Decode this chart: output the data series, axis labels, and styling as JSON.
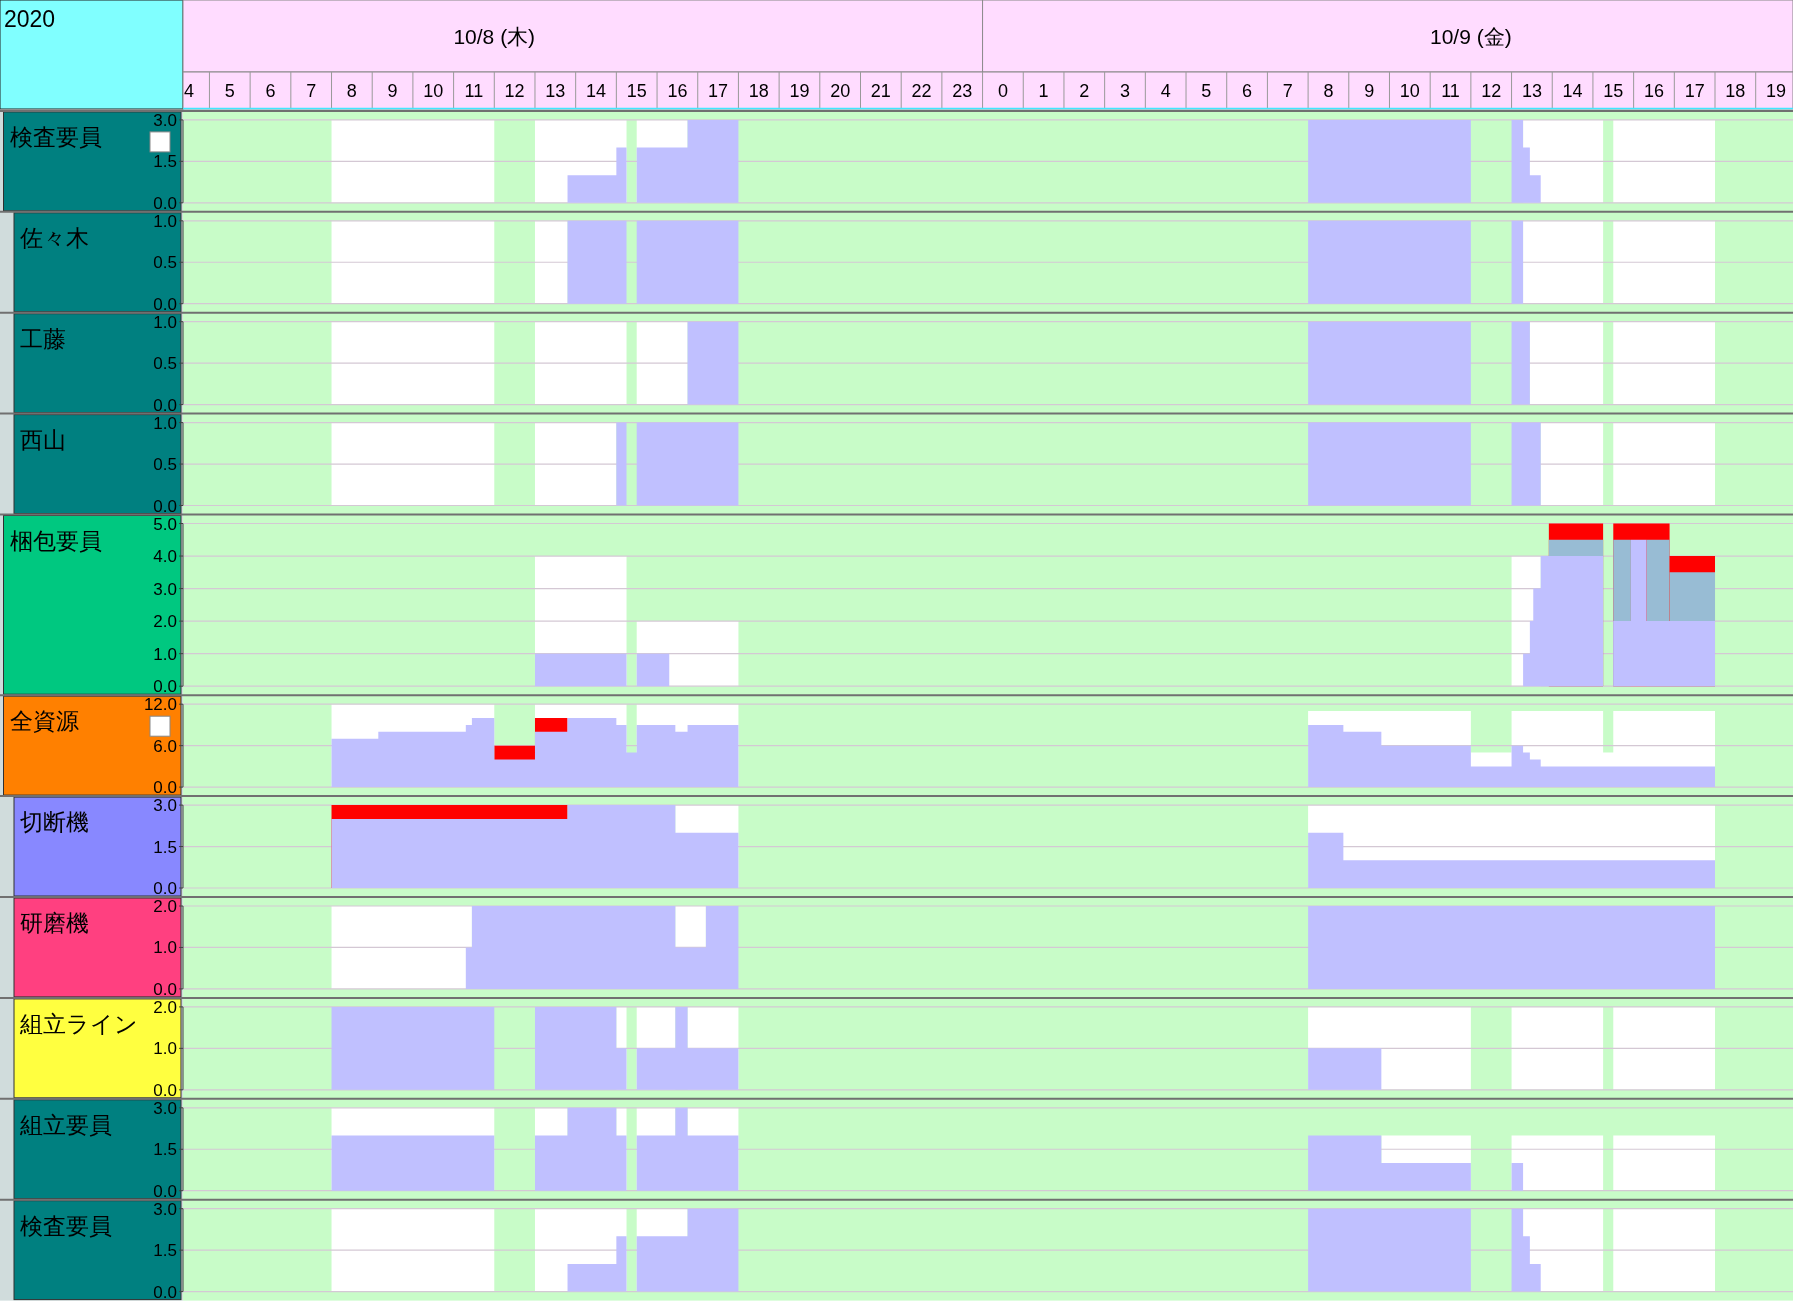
{
  "chart_data": [
    {
      "type": "area",
      "ylabel": "検査要員",
      "annotations": [
        "2020"
      ],
      "xlim": [
        "2020-10-08T04:21",
        "2020-10-09T19:55"
      ],
      "xticks": [
        {
          "value": "2020-10-08T04:30",
          "label": "4"
        },
        {
          "value": "2020-10-08T05:30",
          "label": "5"
        },
        {
          "value": "2020-10-08T06:30",
          "label": "6"
        },
        {
          "value": "2020-10-08T07:30",
          "label": "7"
        },
        {
          "value": "2020-10-08T08:30",
          "label": "8"
        },
        {
          "value": "2020-10-08T09:30",
          "label": "9"
        },
        {
          "value": "2020-10-08T10:30",
          "label": "10"
        },
        {
          "value": "2020-10-08T11:30",
          "label": "11"
        },
        {
          "value": "2020-10-08T12:30",
          "label": "12"
        },
        {
          "value": "2020-10-08T13:30",
          "label": "13"
        },
        {
          "value": "2020-10-08T14:30",
          "label": "14"
        },
        {
          "value": "2020-10-08T15:30",
          "label": "15"
        },
        {
          "value": "2020-10-08T16:30",
          "label": "16"
        },
        {
          "value": "2020-10-08T17:30",
          "label": "17"
        },
        {
          "value": "2020-10-08T18:30",
          "label": "18"
        },
        {
          "value": "2020-10-08T19:30",
          "label": "19"
        },
        {
          "value": "2020-10-08T20:30",
          "label": "20"
        },
        {
          "value": "2020-10-08T21:30",
          "label": "21"
        },
        {
          "value": "2020-10-08T22:30",
          "label": "22"
        },
        {
          "value": "2020-10-08T23:30",
          "label": "23"
        },
        {
          "value": "2020-10-09T00:30",
          "label": "0"
        },
        {
          "value": "2020-10-09T01:30",
          "label": "1"
        },
        {
          "value": "2020-10-09T02:30",
          "label": "2"
        },
        {
          "value": "2020-10-09T03:30",
          "label": "3"
        },
        {
          "value": "2020-10-09T04:30",
          "label": "4"
        },
        {
          "value": "2020-10-09T05:30",
          "label": "5"
        },
        {
          "value": "2020-10-09T06:30",
          "label": "6"
        },
        {
          "value": "2020-10-09T07:30",
          "label": "7"
        },
        {
          "value": "2020-10-09T08:30",
          "label": "8"
        },
        {
          "value": "2020-10-09T09:30",
          "label": "9"
        },
        {
          "value": "2020-10-09T10:30",
          "label": "10"
        },
        {
          "value": "2020-10-09T11:30",
          "label": "11"
        },
        {
          "value": "2020-10-09T12:30",
          "label": "12"
        },
        {
          "value": "2020-10-09T13:30",
          "label": "13"
        },
        {
          "value": "2020-10-09T14:30",
          "label": "14"
        },
        {
          "value": "2020-10-09T15:30",
          "label": "15"
        },
        {
          "value": "2020-10-09T16:30",
          "label": "16"
        },
        {
          "value": "2020-10-09T17:30",
          "label": "17"
        },
        {
          "value": "2020-10-09T18:30",
          "label": "18"
        },
        {
          "value": "2020-10-09T19:30",
          "label": "19"
        }
      ],
      "x2lim": [
        "2020-10-08T04:21",
        "2020-10-09T19:55"
      ],
      "x2ticks": [
        {
          "value": "2020-10-08T12:00",
          "label": "10/8 (木)"
        },
        {
          "value": "2020-10-09T12:00",
          "label": "10/9 (金)"
        }
      ],
      "ylim": [
        0,
        3
      ],
      "yticks": [
        {
          "value": 0,
          "label": "0.0"
        },
        {
          "value": 1.5,
          "label": "1.5"
        },
        {
          "value": 3,
          "label": "3.0"
        }
      ],
      "grid": "y",
      "series": [
        {
          "color": "#ffffff",
          "x": [
            "2020-10-08T08:00",
            "2020-10-08T12:00",
            null,
            "2020-10-08T13:00",
            "2020-10-08T15:15",
            null,
            "2020-10-08T15:30",
            "2020-10-08T16:45",
            null,
            "2020-10-09T13:17",
            "2020-10-09T15:15",
            null,
            "2020-10-09T15:30",
            "2020-10-09T18:00"
          ],
          "values": [
            3,
            3,
            null,
            3,
            3,
            null,
            3,
            3,
            null,
            3,
            3,
            null,
            3,
            3
          ]
        },
        {
          "color": "#c0c0ff",
          "x": [
            "2020-10-08T13:48",
            "2020-10-08T15:00",
            "2020-10-08T15:00",
            "2020-10-08T15:15",
            null,
            "2020-10-08T15:30",
            "2020-10-08T16:45",
            "2020-10-08T16:45",
            "2020-10-08T18:00",
            null,
            "2020-10-09T08:00",
            "2020-10-09T12:00",
            null,
            "2020-10-09T13:00",
            "2020-10-09T13:17",
            "2020-10-09T13:17",
            "2020-10-09T13:27",
            "2020-10-09T13:27",
            "2020-10-09T13:43"
          ],
          "values": [
            1,
            1,
            2,
            2,
            null,
            2,
            2,
            3,
            3,
            null,
            3,
            3,
            null,
            3,
            3,
            2,
            2,
            1,
            1
          ]
        }
      ]
    },
    {
      "type": "area",
      "ylabel": "佐々木",
      "tick_labels": "y",
      "xlim": [
        "2020-10-08T04:21",
        "2020-10-09T19:55"
      ],
      "ylim": [
        0,
        1
      ],
      "yticks": [
        {
          "value": 0,
          "label": "0.0"
        },
        {
          "value": 0.5,
          "label": "0.5"
        },
        {
          "value": 1,
          "label": "1.0"
        }
      ],
      "grid": "y",
      "series": [
        {
          "color": "#ffffff",
          "x": [
            "2020-10-08T08:00",
            "2020-10-08T12:00",
            null,
            "2020-10-08T13:00",
            "2020-10-08T13:48",
            null,
            "2020-10-09T13:17",
            "2020-10-09T15:15",
            null,
            "2020-10-09T15:30",
            "2020-10-09T18:00"
          ],
          "values": [
            1,
            1,
            null,
            1,
            1,
            null,
            1,
            1,
            null,
            1,
            1
          ]
        },
        {
          "color": "#c0c0ff",
          "x": [
            "2020-10-08T13:48",
            "2020-10-08T15:15",
            null,
            "2020-10-08T15:30",
            "2020-10-08T18:00",
            null,
            "2020-10-09T08:00",
            "2020-10-09T12:00",
            null,
            "2020-10-09T13:00",
            "2020-10-09T13:17"
          ],
          "values": [
            1,
            1,
            null,
            1,
            1,
            null,
            1,
            1,
            null,
            1,
            1
          ]
        }
      ]
    },
    {
      "type": "area",
      "ylabel": "工藤",
      "tick_labels": "y",
      "xlim": [
        "2020-10-08T04:21",
        "2020-10-09T19:55"
      ],
      "ylim": [
        0,
        1
      ],
      "yticks": [
        {
          "value": 0,
          "label": "0.0"
        },
        {
          "value": 0.5,
          "label": "0.5"
        },
        {
          "value": 1,
          "label": "1.0"
        }
      ],
      "grid": "y",
      "series": [
        {
          "color": "#ffffff",
          "x": [
            "2020-10-08T08:00",
            "2020-10-08T12:00",
            null,
            "2020-10-08T13:00",
            "2020-10-08T15:15",
            null,
            "2020-10-08T15:30",
            "2020-10-08T16:45",
            null,
            "2020-10-09T13:27",
            "2020-10-09T15:15",
            null,
            "2020-10-09T15:30",
            "2020-10-09T18:00"
          ],
          "values": [
            1,
            1,
            null,
            1,
            1,
            null,
            1,
            1,
            null,
            1,
            1,
            null,
            1,
            1
          ]
        },
        {
          "color": "#c0c0ff",
          "x": [
            "2020-10-08T16:45",
            "2020-10-08T18:00",
            null,
            "2020-10-09T08:00",
            "2020-10-09T12:00",
            null,
            "2020-10-09T13:00",
            "2020-10-09T13:27"
          ],
          "values": [
            1,
            1,
            null,
            1,
            1,
            null,
            1,
            1
          ]
        }
      ]
    },
    {
      "type": "area",
      "ylabel": "西山",
      "tick_labels": "y",
      "xlim": [
        "2020-10-08T04:21",
        "2020-10-09T19:55"
      ],
      "ylim": [
        0,
        1
      ],
      "yticks": [
        {
          "value": 0,
          "label": "0.0"
        },
        {
          "value": 0.5,
          "label": "0.5"
        },
        {
          "value": 1,
          "label": "1.0"
        }
      ],
      "grid": "y",
      "series": [
        {
          "color": "#ffffff",
          "x": [
            "2020-10-08T08:00",
            "2020-10-08T12:00",
            null,
            "2020-10-08T13:00",
            "2020-10-08T15:00",
            null,
            "2020-10-09T13:43",
            "2020-10-09T15:15",
            null,
            "2020-10-09T15:30",
            "2020-10-09T18:00"
          ],
          "values": [
            1,
            1,
            null,
            1,
            1,
            null,
            1,
            1,
            null,
            1,
            1
          ]
        },
        {
          "color": "#c0c0ff",
          "x": [
            "2020-10-08T15:00",
            "2020-10-08T15:15",
            null,
            "2020-10-08T15:30",
            "2020-10-08T18:00",
            null,
            "2020-10-09T08:00",
            "2020-10-09T12:00",
            null,
            "2020-10-09T13:00",
            "2020-10-09T13:43"
          ],
          "values": [
            1,
            1,
            null,
            1,
            1,
            null,
            1,
            1,
            null,
            1,
            1
          ]
        }
      ]
    },
    {
      "type": "area",
      "ylabel": "梱包要員",
      "tick_labels": "y",
      "xlim": [
        "2020-10-08T04:21",
        "2020-10-09T19:55"
      ],
      "ylim": [
        0,
        5
      ],
      "yticks": [
        {
          "value": 0,
          "label": "0.0"
        },
        {
          "value": 1,
          "label": "1.0"
        },
        {
          "value": 2,
          "label": "2.0"
        },
        {
          "value": 3,
          "label": "3.0"
        },
        {
          "value": 4,
          "label": "4.0"
        },
        {
          "value": 5,
          "label": "5.0"
        }
      ],
      "grid": "y",
      "series": [
        {
          "color": "#ffffff",
          "x": [
            "2020-10-08T13:00",
            "2020-10-08T15:15",
            null,
            "2020-10-08T15:30",
            "2020-10-08T18:00",
            null,
            "2020-10-09T13:00",
            "2020-10-09T13:43"
          ],
          "values": [
            4,
            4,
            null,
            2,
            2,
            null,
            4,
            4
          ]
        },
        {
          "color": "#ff0000",
          "x": [
            "2020-10-09T13:55",
            "2020-10-09T15:15",
            null,
            "2020-10-09T15:30",
            "2020-10-09T16:53"
          ],
          "values": [
            5,
            5,
            null,
            5,
            5
          ]
        },
        {
          "color": "#98bcd4",
          "x": [
            "2020-10-09T13:55",
            "2020-10-09T15:15",
            null,
            "2020-10-09T15:30",
            "2020-10-09T15:56",
            null,
            "2020-10-09T16:19",
            "2020-10-09T16:53"
          ],
          "values": [
            4.5,
            4.5,
            null,
            4.5,
            4.5,
            null,
            4.5,
            4.5
          ]
        },
        {
          "color": "#ff0000",
          "x": [
            "2020-10-09T16:53",
            "2020-10-09T18:00"
          ],
          "values": [
            4,
            4
          ]
        },
        {
          "color": "#98bcd4",
          "x": [
            "2020-10-09T16:53",
            "2020-10-09T18:00"
          ],
          "values": [
            3.5,
            3.5
          ]
        },
        {
          "color": "#c0c0ff",
          "x": [
            "2020-10-08T13:00",
            "2020-10-08T15:15",
            null,
            "2020-10-08T15:30",
            "2020-10-08T16:18",
            null,
            "2020-10-09T13:17",
            "2020-10-09T13:27",
            "2020-10-09T13:27",
            "2020-10-09T13:32",
            "2020-10-09T13:32",
            "2020-10-09T13:43",
            "2020-10-09T13:43",
            "2020-10-09T15:15",
            null,
            "2020-10-09T15:30",
            "2020-10-09T15:56",
            "2020-10-09T15:56",
            "2020-10-09T16:19",
            "2020-10-09T16:19",
            "2020-10-09T18:00"
          ],
          "values": [
            1,
            1,
            null,
            1,
            1,
            null,
            1,
            1,
            2,
            2,
            3,
            3,
            4,
            4,
            null,
            2,
            2,
            4.5,
            4.5,
            2,
            2
          ]
        }
      ]
    },
    {
      "type": "area",
      "ylabel": "全資源",
      "tick_labels": "y",
      "xlim": [
        "2020-10-08T04:21",
        "2020-10-09T19:55"
      ],
      "ylim": [
        0,
        12
      ],
      "yticks": [
        {
          "value": 0,
          "label": "0.0"
        },
        {
          "value": 6,
          "label": "6.0"
        },
        {
          "value": 12,
          "label": "12.0"
        }
      ],
      "grid": "y",
      "series": [
        {
          "color": "#ffffff",
          "x": [
            "2020-10-08T08:00",
            "2020-10-08T12:00",
            null,
            "2020-10-08T13:00",
            "2020-10-08T15:15",
            null,
            "2020-10-08T15:30",
            "2020-10-08T18:00",
            null,
            "2020-10-09T08:00",
            "2020-10-09T12:00",
            "2020-10-09T12:00",
            "2020-10-09T13:00",
            "2020-10-09T13:00",
            "2020-10-09T15:15",
            "2020-10-09T15:15",
            "2020-10-09T15:30",
            "2020-10-09T15:30",
            "2020-10-09T18:00"
          ],
          "values": [
            12,
            12,
            null,
            12,
            12,
            null,
            12,
            12,
            null,
            11,
            11,
            5,
            5,
            11,
            11,
            5,
            5,
            11,
            11
          ]
        },
        {
          "color": "#ff0000",
          "x": [
            "2020-10-08T12:00",
            "2020-10-08T13:00",
            "2020-10-08T13:00",
            "2020-10-08T13:48"
          ],
          "values": [
            6,
            6,
            10,
            10
          ]
        },
        {
          "color": "#c0c0ff",
          "x": [
            "2020-10-08T08:00",
            "2020-10-08T09:09",
            "2020-10-08T09:09",
            "2020-10-08T11:18",
            "2020-10-08T11:18",
            "2020-10-08T11:27",
            "2020-10-08T11:27",
            "2020-10-08T12:00",
            "2020-10-08T12:00",
            "2020-10-08T13:00",
            "2020-10-08T13:00",
            "2020-10-08T13:48",
            "2020-10-08T13:48",
            "2020-10-08T15:00",
            "2020-10-08T15:00",
            "2020-10-08T15:15",
            "2020-10-08T15:15",
            "2020-10-08T15:30",
            "2020-10-08T15:30",
            "2020-10-08T16:27",
            "2020-10-08T16:27",
            "2020-10-08T16:45",
            "2020-10-08T16:45",
            "2020-10-08T18:00",
            null,
            "2020-10-09T08:00",
            "2020-10-09T08:52",
            "2020-10-09T08:52",
            "2020-10-09T09:48",
            "2020-10-09T09:48",
            "2020-10-09T12:00",
            "2020-10-09T12:00",
            "2020-10-09T13:00",
            "2020-10-09T13:00",
            "2020-10-09T13:17",
            "2020-10-09T13:17",
            "2020-10-09T13:27",
            "2020-10-09T13:27",
            "2020-10-09T13:43",
            "2020-10-09T13:43",
            "2020-10-09T18:00"
          ],
          "values": [
            7,
            7,
            8,
            8,
            9,
            9,
            10,
            10,
            4,
            4,
            8,
            8,
            10,
            10,
            9,
            9,
            5,
            5,
            9,
            9,
            8,
            8,
            9,
            9,
            null,
            9,
            9,
            8,
            8,
            6,
            6,
            3,
            3,
            6,
            6,
            5,
            5,
            4,
            4,
            3,
            3
          ]
        }
      ]
    },
    {
      "type": "area",
      "ylabel": "切断機",
      "tick_labels": "y",
      "xlim": [
        "2020-10-08T04:21",
        "2020-10-09T19:55"
      ],
      "ylim": [
        0,
        3
      ],
      "yticks": [
        {
          "value": 0,
          "label": "0.0"
        },
        {
          "value": 1.5,
          "label": "1.5"
        },
        {
          "value": 3,
          "label": "3.0"
        }
      ],
      "grid": "y",
      "series": [
        {
          "color": "#ffffff",
          "x": [
            "2020-10-08T16:27",
            "2020-10-08T18:00",
            null,
            "2020-10-09T08:00",
            "2020-10-09T18:00"
          ],
          "values": [
            3,
            3,
            null,
            3,
            3
          ]
        },
        {
          "color": "#ff0000",
          "x": [
            "2020-10-08T08:00",
            "2020-10-08T13:48"
          ],
          "values": [
            3,
            3
          ]
        },
        {
          "color": "#c0c0ff",
          "x": [
            "2020-10-08T08:00",
            "2020-10-08T13:48",
            "2020-10-08T13:48",
            "2020-10-08T16:27",
            "2020-10-08T16:27",
            "2020-10-08T18:00",
            null,
            "2020-10-09T08:00",
            "2020-10-09T08:52",
            "2020-10-09T08:52",
            "2020-10-09T18:00"
          ],
          "values": [
            2.5,
            2.5,
            3,
            3,
            2,
            2,
            null,
            2,
            2,
            1,
            1
          ]
        }
      ]
    },
    {
      "type": "area",
      "ylabel": "研磨機",
      "tick_labels": "y",
      "xlim": [
        "2020-10-08T04:21",
        "2020-10-09T19:55"
      ],
      "ylim": [
        0,
        2
      ],
      "yticks": [
        {
          "value": 0,
          "label": "0.0"
        },
        {
          "value": 1,
          "label": "1.0"
        },
        {
          "value": 2,
          "label": "2.0"
        }
      ],
      "grid": "y",
      "series": [
        {
          "color": "#ffffff",
          "x": [
            "2020-10-08T08:00",
            "2020-10-08T11:27",
            null,
            "2020-10-08T16:27",
            "2020-10-08T17:12"
          ],
          "values": [
            2,
            2,
            null,
            2,
            2
          ]
        },
        {
          "color": "#c0c0ff",
          "x": [
            "2020-10-08T11:18",
            "2020-10-08T11:27",
            "2020-10-08T11:27",
            "2020-10-08T16:27",
            "2020-10-08T16:27",
            "2020-10-08T17:12",
            "2020-10-08T17:12",
            "2020-10-08T18:00",
            null,
            "2020-10-09T08:00",
            "2020-10-09T18:00"
          ],
          "values": [
            1,
            1,
            2,
            2,
            1,
            1,
            2,
            2,
            null,
            2,
            2
          ]
        }
      ]
    },
    {
      "type": "area",
      "ylabel": "組立ライン",
      "tick_labels": "y",
      "xlim": [
        "2020-10-08T04:21",
        "2020-10-09T19:55"
      ],
      "ylim": [
        0,
        2
      ],
      "yticks": [
        {
          "value": 0,
          "label": "0.0"
        },
        {
          "value": 1,
          "label": "1.0"
        },
        {
          "value": 2,
          "label": "2.0"
        }
      ],
      "grid": "y",
      "series": [
        {
          "color": "#ffffff",
          "x": [
            "2020-10-08T15:00",
            "2020-10-08T15:15",
            null,
            "2020-10-08T15:30",
            "2020-10-08T16:27",
            null,
            "2020-10-08T16:45",
            "2020-10-08T18:00",
            null,
            "2020-10-09T08:00",
            "2020-10-09T12:00",
            null,
            "2020-10-09T13:00",
            "2020-10-09T15:15",
            null,
            "2020-10-09T15:30",
            "2020-10-09T18:00"
          ],
          "values": [
            2,
            2,
            null,
            2,
            2,
            null,
            2,
            2,
            null,
            2,
            2,
            null,
            2,
            2,
            null,
            2,
            2
          ]
        },
        {
          "color": "#c0c0ff",
          "x": [
            "2020-10-08T08:00",
            "2020-10-08T12:00",
            null,
            "2020-10-08T13:00",
            "2020-10-08T15:00",
            "2020-10-08T15:00",
            "2020-10-08T15:15",
            null,
            "2020-10-08T15:30",
            "2020-10-08T16:27",
            "2020-10-08T16:27",
            "2020-10-08T16:45",
            "2020-10-08T16:45",
            "2020-10-08T18:00",
            null,
            "2020-10-09T08:00",
            "2020-10-09T09:48"
          ],
          "values": [
            2,
            2,
            null,
            2,
            2,
            1,
            1,
            null,
            1,
            1,
            2,
            2,
            1,
            1,
            null,
            1,
            1
          ]
        }
      ]
    },
    {
      "type": "area",
      "ylabel": "組立要員",
      "tick_labels": "y",
      "xlim": [
        "2020-10-08T04:21",
        "2020-10-09T19:55"
      ],
      "ylim": [
        0,
        3
      ],
      "yticks": [
        {
          "value": 0,
          "label": "0.0"
        },
        {
          "value": 1.5,
          "label": "1.5"
        },
        {
          "value": 3,
          "label": "3.0"
        }
      ],
      "grid": "y",
      "series": [
        {
          "color": "#ffffff",
          "x": [
            "2020-10-08T08:00",
            "2020-10-08T12:00",
            null,
            "2020-10-08T13:00",
            "2020-10-08T13:48",
            null,
            "2020-10-08T15:00",
            "2020-10-08T15:15",
            null,
            "2020-10-08T15:30",
            "2020-10-08T16:27",
            null,
            "2020-10-08T16:45",
            "2020-10-08T18:00",
            null,
            "2020-10-09T09:48",
            "2020-10-09T12:00",
            null,
            "2020-10-09T13:00",
            "2020-10-09T15:15",
            null,
            "2020-10-09T15:30",
            "2020-10-09T18:00"
          ],
          "values": [
            3,
            3,
            null,
            3,
            3,
            null,
            3,
            3,
            null,
            3,
            3,
            null,
            3,
            3,
            null,
            2,
            2,
            null,
            2,
            2,
            null,
            2,
            2
          ]
        },
        {
          "color": "#c0c0ff",
          "x": [
            "2020-10-08T08:00",
            "2020-10-08T12:00",
            null,
            "2020-10-08T13:00",
            "2020-10-08T13:48",
            "2020-10-08T13:48",
            "2020-10-08T15:00",
            "2020-10-08T15:00",
            "2020-10-08T15:15",
            null,
            "2020-10-08T15:30",
            "2020-10-08T16:27",
            "2020-10-08T16:27",
            "2020-10-08T16:45",
            "2020-10-08T16:45",
            "2020-10-08T18:00",
            null,
            "2020-10-09T08:00",
            "2020-10-09T09:48",
            "2020-10-09T09:48",
            "2020-10-09T12:00",
            null,
            "2020-10-09T13:00",
            "2020-10-09T13:17"
          ],
          "values": [
            2,
            2,
            null,
            2,
            2,
            3,
            3,
            2,
            2,
            null,
            2,
            2,
            3,
            3,
            2,
            2,
            null,
            2,
            2,
            1,
            1,
            null,
            1,
            1
          ]
        }
      ]
    },
    {
      "type": "area",
      "ylabel": "検査要員",
      "tick_labels": "y",
      "xlim": [
        "2020-10-08T04:21",
        "2020-10-09T19:55"
      ],
      "ylim": [
        0,
        3
      ],
      "yticks": [
        {
          "value": 0,
          "label": "0.0"
        },
        {
          "value": 1.5,
          "label": "1.5"
        },
        {
          "value": 3,
          "label": "3.0"
        }
      ],
      "grid": "y",
      "series": [
        {
          "color": "#ffffff",
          "x": [
            "2020-10-08T08:00",
            "2020-10-08T12:00",
            null,
            "2020-10-08T13:00",
            "2020-10-08T15:15",
            null,
            "2020-10-08T15:30",
            "2020-10-08T16:45",
            null,
            "2020-10-09T13:17",
            "2020-10-09T15:15",
            null,
            "2020-10-09T15:30",
            "2020-10-09T18:00"
          ],
          "values": [
            3,
            3,
            null,
            3,
            3,
            null,
            3,
            3,
            null,
            3,
            3,
            null,
            3,
            3
          ]
        },
        {
          "color": "#c0c0ff",
          "x": [
            "2020-10-08T13:48",
            "2020-10-08T15:00",
            "2020-10-08T15:00",
            "2020-10-08T15:15",
            null,
            "2020-10-08T15:30",
            "2020-10-08T16:45",
            "2020-10-08T16:45",
            "2020-10-08T18:00",
            null,
            "2020-10-09T08:00",
            "2020-10-09T12:00",
            null,
            "2020-10-09T13:00",
            "2020-10-09T13:17",
            "2020-10-09T13:17",
            "2020-10-09T13:27",
            "2020-10-09T13:27",
            "2020-10-09T13:43"
          ],
          "values": [
            1,
            1,
            2,
            2,
            null,
            2,
            2,
            3,
            3,
            null,
            3,
            3,
            null,
            3,
            3,
            2,
            2,
            1,
            1
          ]
        }
      ]
    }
  ]
}
